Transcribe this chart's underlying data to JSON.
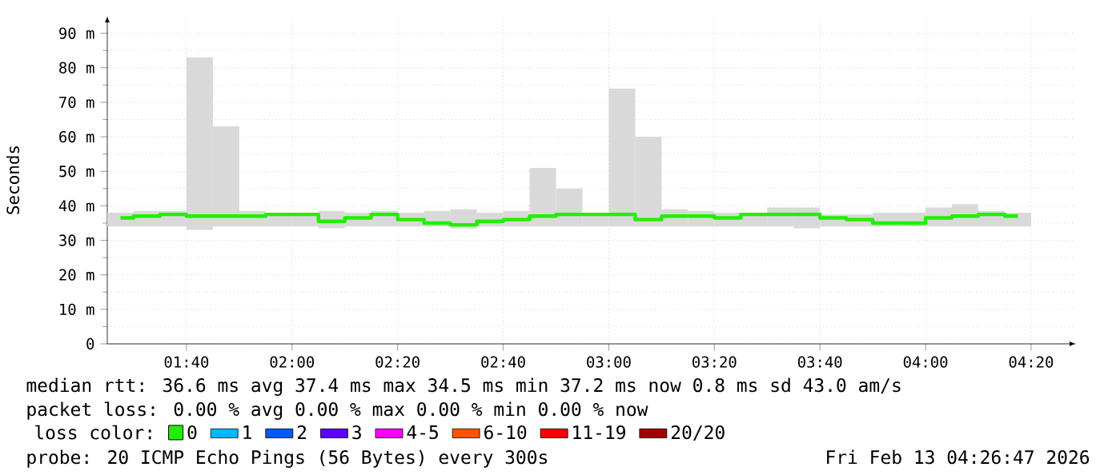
{
  "chart_data": {
    "type": "bar",
    "ylabel": "Seconds",
    "x": [
      1.4583,
      1.5417,
      1.625,
      1.7083,
      1.7917,
      1.875,
      1.9583,
      2.0417,
      2.125,
      2.2083,
      2.2917,
      2.375,
      2.4583,
      2.5417,
      2.625,
      2.7083,
      2.7917,
      2.875,
      2.9583,
      3.0417,
      3.125,
      3.2083,
      3.2917,
      3.375,
      3.4583,
      3.5417,
      3.625,
      3.7083,
      3.7917,
      3.875,
      3.9583,
      4.0417,
      4.125,
      4.2083,
      4.2917
    ],
    "series": [
      {
        "color": "#d9d9d9",
        "base": [
          34,
          34,
          34,
          33,
          34,
          34,
          34,
          34,
          33.5,
          34,
          34,
          34,
          34,
          33.5,
          34,
          34,
          34,
          34,
          34,
          34,
          34,
          34,
          34,
          34,
          34,
          34,
          33.5,
          34,
          34,
          34,
          34,
          34,
          34,
          34,
          34
        ],
        "values": [
          4,
          4.5,
          4.5,
          50,
          29,
          4.5,
          4,
          4,
          5,
          4,
          4.5,
          4,
          4.5,
          5.5,
          4,
          4.5,
          17,
          11,
          4,
          40,
          26,
          5,
          4.5,
          4,
          4,
          5.5,
          6,
          3.5,
          3.5,
          4,
          4,
          5.5,
          6.5,
          4.5,
          4
        ]
      },
      {
        "type": "step",
        "name": "0",
        "color": "#22ee00",
        "values": [
          36.5,
          37,
          37.5,
          37,
          37,
          37,
          37.5,
          37.5,
          35.5,
          36.5,
          37.5,
          36,
          35,
          34.5,
          35.5,
          36,
          37,
          37.5,
          37.5,
          37.5,
          36,
          37,
          37,
          36.5,
          37.5,
          37.5,
          37.5,
          36.5,
          36,
          35,
          35,
          36.5,
          37,
          37.5,
          37
        ]
      },
      {
        "type": "step",
        "name": "1",
        "color": "#00b8ff",
        "values": [
          null,
          null,
          null,
          null,
          null,
          null,
          null,
          null,
          null,
          null,
          null,
          null,
          null,
          null,
          null,
          null,
          null,
          null,
          null,
          null,
          null,
          null,
          null,
          null,
          null,
          null,
          null,
          null,
          null,
          null,
          null,
          null,
          null,
          null,
          null
        ]
      },
      {
        "type": "step",
        "name": "2",
        "color": "#0059ff",
        "values": [
          null,
          null,
          null,
          null,
          null,
          null,
          null,
          null,
          null,
          null,
          null,
          null,
          null,
          null,
          null,
          null,
          null,
          null,
          null,
          null,
          null,
          null,
          null,
          null,
          null,
          null,
          null,
          null,
          null,
          null,
          null,
          null,
          null,
          null,
          null
        ]
      },
      {
        "type": "step",
        "name": "3",
        "color": "#5e00ff",
        "values": [
          null,
          null,
          null,
          null,
          null,
          null,
          null,
          null,
          null,
          null,
          null,
          null,
          null,
          null,
          null,
          null,
          null,
          null,
          null,
          null,
          null,
          null,
          null,
          null,
          null,
          null,
          null,
          null,
          null,
          null,
          null,
          null,
          null,
          null,
          null
        ]
      },
      {
        "type": "step",
        "name": "4-5",
        "color": "#ff00ff",
        "values": [
          null,
          null,
          null,
          null,
          null,
          null,
          null,
          null,
          null,
          null,
          null,
          null,
          null,
          null,
          null,
          null,
          null,
          null,
          null,
          null,
          null,
          null,
          null,
          null,
          null,
          null,
          null,
          null,
          null,
          null,
          null,
          null,
          null,
          null,
          null
        ]
      },
      {
        "type": "step",
        "name": "6-10",
        "color": "#ff5500",
        "values": [
          null,
          null,
          null,
          null,
          null,
          null,
          null,
          null,
          null,
          null,
          null,
          null,
          null,
          null,
          null,
          null,
          null,
          null,
          null,
          null,
          null,
          null,
          null,
          null,
          null,
          null,
          null,
          null,
          null,
          null,
          null,
          null,
          null,
          null,
          null
        ]
      },
      {
        "type": "step",
        "name": "11-19",
        "color": "#ff0000",
        "values": [
          null,
          null,
          null,
          null,
          null,
          null,
          null,
          null,
          null,
          null,
          null,
          null,
          null,
          null,
          null,
          null,
          null,
          null,
          null,
          null,
          null,
          null,
          null,
          null,
          null,
          null,
          null,
          null,
          null,
          null,
          null,
          null,
          null,
          null,
          null
        ]
      },
      {
        "type": "step",
        "name": "20/20",
        "color": "#a10000",
        "values": [
          null,
          null,
          null,
          null,
          null,
          null,
          null,
          null,
          null,
          null,
          null,
          null,
          null,
          null,
          null,
          null,
          null,
          null,
          null,
          null,
          null,
          null,
          null,
          null,
          null,
          null,
          null,
          null,
          null,
          null,
          null,
          null,
          null,
          null,
          null
        ]
      }
    ],
    "legend_title": "loss color:",
    "legend": "bottom",
    "xlim": [
      1.4167,
      4.475
    ],
    "ylim": [
      0,
      95
    ],
    "xticks": [
      {
        "value": 1.6667,
        "label": "01:40"
      },
      {
        "value": 2.0,
        "label": "02:00"
      },
      {
        "value": 2.3333,
        "label": "02:20"
      },
      {
        "value": 2.6667,
        "label": "02:40"
      },
      {
        "value": 3.0,
        "label": "03:00"
      },
      {
        "value": 3.3333,
        "label": "03:20"
      },
      {
        "value": 3.6667,
        "label": "03:40"
      },
      {
        "value": 4.0,
        "label": "04:00"
      },
      {
        "value": 4.3333,
        "label": "04:20"
      }
    ],
    "yticks": [
      0,
      {
        "value": 10,
        "label": "10 m"
      },
      {
        "value": 20,
        "label": "20 m"
      },
      {
        "value": 30,
        "label": "30 m"
      },
      {
        "value": 40,
        "label": "40 m"
      },
      {
        "value": 50,
        "label": "50 m"
      },
      {
        "value": 60,
        "label": "60 m"
      },
      {
        "value": 70,
        "label": "70 m"
      },
      {
        "value": 80,
        "label": "80 m"
      },
      {
        "value": 90,
        "label": "90 m"
      }
    ],
    "grid": true,
    "annotations": [
      "median rtt:  36.6 ms avg  37.4 ms max  34.5 ms min  37.2 ms now  0.8 ms sd  43.0   am/s",
      "packet loss: 0.00 % avg  0.00 % max  0.00 % min  0.00 % now",
      "probe:       20 ICMP Echo Pings (56 Bytes) every 300s",
      "Fri Feb 13 04:26:47 2026"
    ]
  }
}
